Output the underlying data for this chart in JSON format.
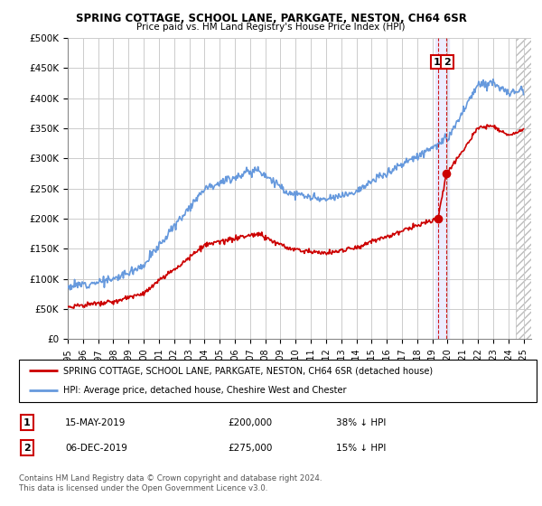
{
  "title": "SPRING COTTAGE, SCHOOL LANE, PARKGATE, NESTON, CH64 6SR",
  "subtitle": "Price paid vs. HM Land Registry's House Price Index (HPI)",
  "ylim": [
    0,
    500000
  ],
  "xlim_start": 1995.0,
  "xlim_end": 2025.5,
  "yticks": [
    0,
    50000,
    100000,
    150000,
    200000,
    250000,
    300000,
    350000,
    400000,
    450000,
    500000
  ],
  "ytick_labels": [
    "£0",
    "£50K",
    "£100K",
    "£150K",
    "£200K",
    "£250K",
    "£300K",
    "£350K",
    "£400K",
    "£450K",
    "£500K"
  ],
  "xtick_years": [
    1995,
    1996,
    1997,
    1998,
    1999,
    2000,
    2001,
    2002,
    2003,
    2004,
    2005,
    2006,
    2007,
    2008,
    2009,
    2010,
    2011,
    2012,
    2013,
    2014,
    2015,
    2016,
    2017,
    2018,
    2019,
    2020,
    2021,
    2022,
    2023,
    2024,
    2025
  ],
  "hpi_line_color": "#6699DD",
  "price_line_color": "#CC0000",
  "vline_color": "#CC0000",
  "sale1_year": 2019.37,
  "sale1_price": 200000,
  "sale2_year": 2019.92,
  "sale2_price": 275000,
  "legend_line1": "SPRING COTTAGE, SCHOOL LANE, PARKGATE, NESTON, CH64 6SR (detached house)",
  "legend_line2": "HPI: Average price, detached house, Cheshire West and Chester",
  "table_row1": [
    "1",
    "15-MAY-2019",
    "£200,000",
    "38% ↓ HPI"
  ],
  "table_row2": [
    "2",
    "06-DEC-2019",
    "£275,000",
    "15% ↓ HPI"
  ],
  "footer": "Contains HM Land Registry data © Crown copyright and database right 2024.\nThis data is licensed under the Open Government Licence v3.0.",
  "background_color": "#ffffff",
  "grid_color": "#cccccc",
  "hatch_start": 2024.5,
  "shade_x1": 2019.2,
  "shade_x2": 2020.1
}
